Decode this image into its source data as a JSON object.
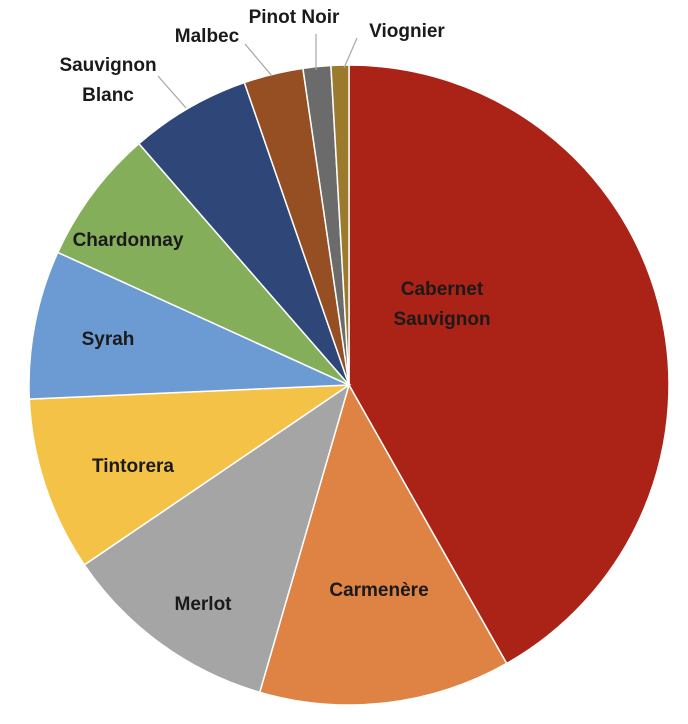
{
  "chart_data": {
    "type": "pie",
    "categories": [
      "Cabernet Sauvignon",
      "Carmenère",
      "Merlot",
      "Tintorera",
      "Syrah",
      "Chardonnay",
      "Sauvignon Blanc",
      "Malbec",
      "Pinot Noir",
      "Viognier"
    ],
    "values": [
      41.8,
      12.7,
      11,
      8.8,
      7.5,
      6.8,
      6.1,
      3,
      1.4,
      0.9
    ],
    "colors": [
      "#ab2217",
      "#de8344",
      "#a5a5a5",
      "#f4c246",
      "#6c9bd3",
      "#84ae5a",
      "#2f4778",
      "#964f22",
      "#6b6b6b",
      "#9c7a2d"
    ]
  }
}
